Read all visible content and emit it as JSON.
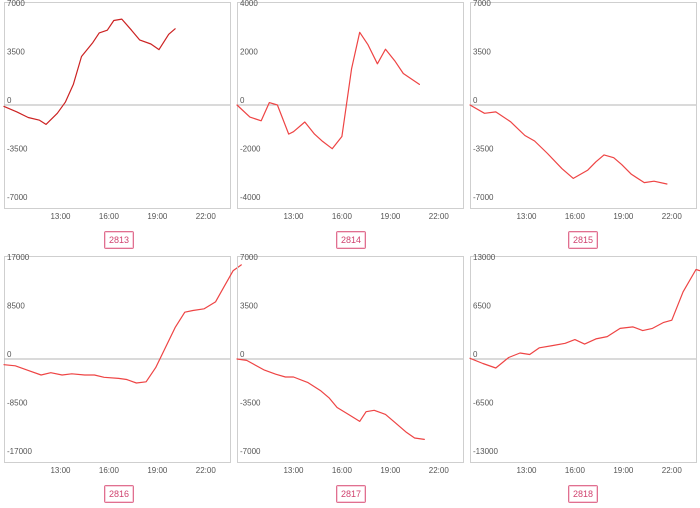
{
  "panels": [
    {
      "id": "2813",
      "label": "2813",
      "chart_data": {
        "type": "line",
        "ylim": [
          -7000,
          7000
        ],
        "xlim": [
          9.5,
          23.5
        ],
        "y_ticks": [
          "7000",
          "3500",
          "0",
          "-3500",
          "-7000"
        ],
        "x_ticks": [
          "13:00",
          "16:00",
          "19:00",
          "22:00"
        ],
        "series": [
          {
            "color": "#cc2222",
            "points": [
              [
                9.5,
                -100
              ],
              [
                10.3,
                -500
              ],
              [
                11.0,
                -900
              ],
              [
                11.7,
                -1100
              ],
              [
                12.1,
                -1400
              ],
              [
                12.8,
                -600
              ],
              [
                13.3,
                200
              ],
              [
                13.8,
                1500
              ],
              [
                14.3,
                3500
              ],
              [
                15.0,
                4500
              ],
              [
                15.4,
                5200
              ],
              [
                15.9,
                5400
              ],
              [
                16.3,
                6100
              ],
              [
                16.8,
                6200
              ],
              [
                17.4,
                5400
              ],
              [
                17.9,
                4700
              ],
              [
                18.6,
                4400
              ],
              [
                19.1,
                4000
              ],
              [
                19.7,
                5100
              ],
              [
                20.1,
                5500
              ]
            ]
          }
        ]
      }
    },
    {
      "id": "2814",
      "label": "2814",
      "chart_data": {
        "type": "line",
        "ylim": [
          -4000,
          4000
        ],
        "xlim": [
          9.5,
          23.5
        ],
        "y_ticks": [
          "4000",
          "2000",
          "0",
          "-2000",
          "-4000"
        ],
        "x_ticks": [
          "13:00",
          "16:00",
          "19:00",
          "22:00"
        ],
        "series": [
          {
            "color": "#ee4444",
            "points": [
              [
                9.5,
                0
              ],
              [
                10.3,
                -500
              ],
              [
                11.0,
                -650
              ],
              [
                11.5,
                100
              ],
              [
                12.0,
                0
              ],
              [
                12.7,
                -1200
              ],
              [
                13.0,
                -1100
              ],
              [
                13.7,
                -700
              ],
              [
                14.3,
                -1200
              ],
              [
                14.8,
                -1500
              ],
              [
                15.4,
                -1800
              ],
              [
                16.0,
                -1300
              ],
              [
                16.6,
                1500
              ],
              [
                17.1,
                3000
              ],
              [
                17.6,
                2500
              ],
              [
                18.2,
                1700
              ],
              [
                18.7,
                2300
              ],
              [
                19.3,
                1800
              ],
              [
                19.8,
                1300
              ],
              [
                20.8,
                850
              ]
            ]
          }
        ]
      }
    },
    {
      "id": "2815",
      "label": "2815",
      "chart_data": {
        "type": "line",
        "ylim": [
          -7000,
          7000
        ],
        "xlim": [
          9.5,
          23.5
        ],
        "y_ticks": [
          "7000",
          "3500",
          "0",
          "-3500",
          "-7000"
        ],
        "x_ticks": [
          "13:00",
          "16:00",
          "19:00",
          "22:00"
        ],
        "series": [
          {
            "color": "#ee4444",
            "points": [
              [
                9.5,
                0
              ],
              [
                10.4,
                -600
              ],
              [
                11.1,
                -500
              ],
              [
                12.0,
                -1200
              ],
              [
                12.9,
                -2200
              ],
              [
                13.5,
                -2600
              ],
              [
                14.3,
                -3500
              ],
              [
                15.2,
                -4600
              ],
              [
                15.9,
                -5300
              ],
              [
                16.8,
                -4700
              ],
              [
                17.3,
                -4100
              ],
              [
                17.8,
                -3600
              ],
              [
                18.4,
                -3800
              ],
              [
                18.9,
                -4300
              ],
              [
                19.5,
                -5000
              ],
              [
                20.3,
                -5600
              ],
              [
                20.9,
                -5500
              ],
              [
                21.7,
                -5700
              ]
            ]
          }
        ]
      }
    },
    {
      "id": "2816",
      "label": "2816",
      "chart_data": {
        "type": "line",
        "ylim": [
          -17000,
          17000
        ],
        "xlim": [
          9.5,
          23.5
        ],
        "y_ticks": [
          "17000",
          "8500",
          "0",
          "-8500",
          "-17000"
        ],
        "x_ticks": [
          "13:00",
          "16:00",
          "19:00",
          "22:00"
        ],
        "series": [
          {
            "color": "#ee4444",
            "points": [
              [
                9.5,
                -1000
              ],
              [
                10.2,
                -1200
              ],
              [
                11.0,
                -2000
              ],
              [
                11.8,
                -2800
              ],
              [
                12.4,
                -2400
              ],
              [
                13.1,
                -2800
              ],
              [
                13.7,
                -2600
              ],
              [
                14.5,
                -2800
              ],
              [
                15.1,
                -2800
              ],
              [
                15.7,
                -3200
              ],
              [
                16.6,
                -3400
              ],
              [
                17.1,
                -3600
              ],
              [
                17.7,
                -4200
              ],
              [
                18.3,
                -4000
              ],
              [
                18.9,
                -1500
              ],
              [
                19.5,
                2000
              ],
              [
                20.1,
                5500
              ],
              [
                20.7,
                8200
              ],
              [
                21.2,
                8500
              ],
              [
                21.9,
                8800
              ],
              [
                22.6,
                10000
              ],
              [
                23.1,
                12500
              ],
              [
                23.7,
                15500
              ],
              [
                24.2,
                16500
              ]
            ]
          }
        ]
      }
    },
    {
      "id": "2817",
      "label": "2817",
      "chart_data": {
        "type": "line",
        "ylim": [
          -7000,
          7000
        ],
        "xlim": [
          9.5,
          23.5
        ],
        "y_ticks": [
          "7000",
          "3500",
          "0",
          "-3500",
          "-7000"
        ],
        "x_ticks": [
          "13:00",
          "16:00",
          "19:00",
          "22:00"
        ],
        "series": [
          {
            "color": "#ee4444",
            "points": [
              [
                9.5,
                0
              ],
              [
                10.1,
                -100
              ],
              [
                11.2,
                -800
              ],
              [
                11.9,
                -1100
              ],
              [
                12.5,
                -1300
              ],
              [
                13.0,
                -1300
              ],
              [
                13.9,
                -1700
              ],
              [
                14.7,
                -2300
              ],
              [
                15.2,
                -2800
              ],
              [
                15.7,
                -3500
              ],
              [
                16.4,
                -4000
              ],
              [
                17.1,
                -4500
              ],
              [
                17.5,
                -3800
              ],
              [
                18.0,
                -3700
              ],
              [
                18.7,
                -4000
              ],
              [
                19.3,
                -4600
              ],
              [
                20.0,
                -5300
              ],
              [
                20.5,
                -5700
              ],
              [
                21.1,
                -5800
              ]
            ]
          }
        ]
      }
    },
    {
      "id": "2818",
      "label": "2818",
      "chart_data": {
        "type": "line",
        "ylim": [
          -13000,
          13000
        ],
        "xlim": [
          9.5,
          23.5
        ],
        "y_ticks": [
          "13000",
          "6500",
          "0",
          "-6500",
          "-13000"
        ],
        "x_ticks": [
          "13:00",
          "16:00",
          "19:00",
          "22:00"
        ],
        "series": [
          {
            "color": "#ee4444",
            "points": [
              [
                9.5,
                100
              ],
              [
                10.3,
                -600
              ],
              [
                11.1,
                -1200
              ],
              [
                11.9,
                200
              ],
              [
                12.6,
                800
              ],
              [
                13.2,
                600
              ],
              [
                13.8,
                1500
              ],
              [
                14.6,
                1800
              ],
              [
                15.4,
                2100
              ],
              [
                16.0,
                2600
              ],
              [
                16.6,
                2000
              ],
              [
                17.3,
                2700
              ],
              [
                18.0,
                3000
              ],
              [
                18.8,
                4100
              ],
              [
                19.6,
                4300
              ],
              [
                20.2,
                3800
              ],
              [
                20.8,
                4100
              ],
              [
                21.5,
                4900
              ],
              [
                22.0,
                5200
              ],
              [
                22.7,
                9000
              ],
              [
                23.5,
                12000
              ],
              [
                24.1,
                11600
              ]
            ]
          }
        ]
      }
    }
  ]
}
